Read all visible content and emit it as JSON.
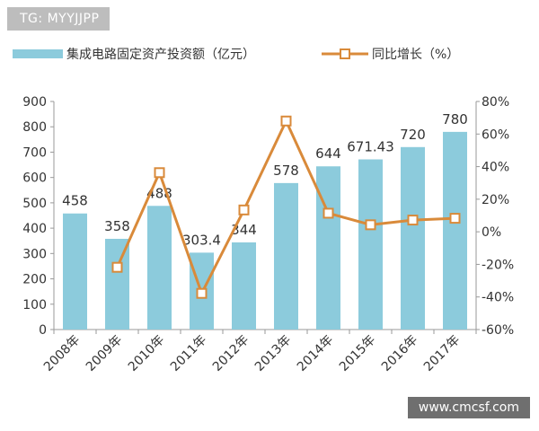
{
  "overlays": {
    "top_tag": "TG: MYYJJPP",
    "bottom_tag": "www.cmcsf.com"
  },
  "colors": {
    "bar": "#8ccbdc",
    "line": "#d98a3a",
    "marker_fill": "#ffffff",
    "axis": "#999999",
    "text": "#333333"
  },
  "chart_data": {
    "type": "bar",
    "categories": [
      "2008年",
      "2009年",
      "2010年",
      "2011年",
      "2012年",
      "2013年",
      "2014年",
      "2015年",
      "2016年",
      "2017年"
    ],
    "series": [
      {
        "name": "集成电路固定资产投资额（亿元）",
        "kind": "bar",
        "axis": "left",
        "values": [
          458,
          358,
          488,
          303.4,
          344,
          578,
          644,
          671.43,
          720,
          780
        ],
        "labels": [
          "458",
          "358",
          "488",
          "303.4",
          "344",
          "578",
          "644",
          "671.43",
          "720",
          "780"
        ]
      },
      {
        "name": "同比增长（%）",
        "kind": "line",
        "axis": "right",
        "values": [
          null,
          -21.8,
          36.3,
          -37.8,
          13.4,
          68.0,
          11.4,
          4.3,
          7.2,
          8.3
        ]
      }
    ],
    "y_left": {
      "min": 0,
      "max": 900,
      "step": 100,
      "ticks": [
        "0",
        "100",
        "200",
        "300",
        "400",
        "500",
        "600",
        "700",
        "800",
        "900"
      ]
    },
    "y_right": {
      "min": -60,
      "max": 80,
      "step": 20,
      "ticks": [
        "-60%",
        "-40%",
        "-20%",
        "0%",
        "20%",
        "40%",
        "60%",
        "80%"
      ]
    },
    "grid": false,
    "legend_position": "top"
  }
}
